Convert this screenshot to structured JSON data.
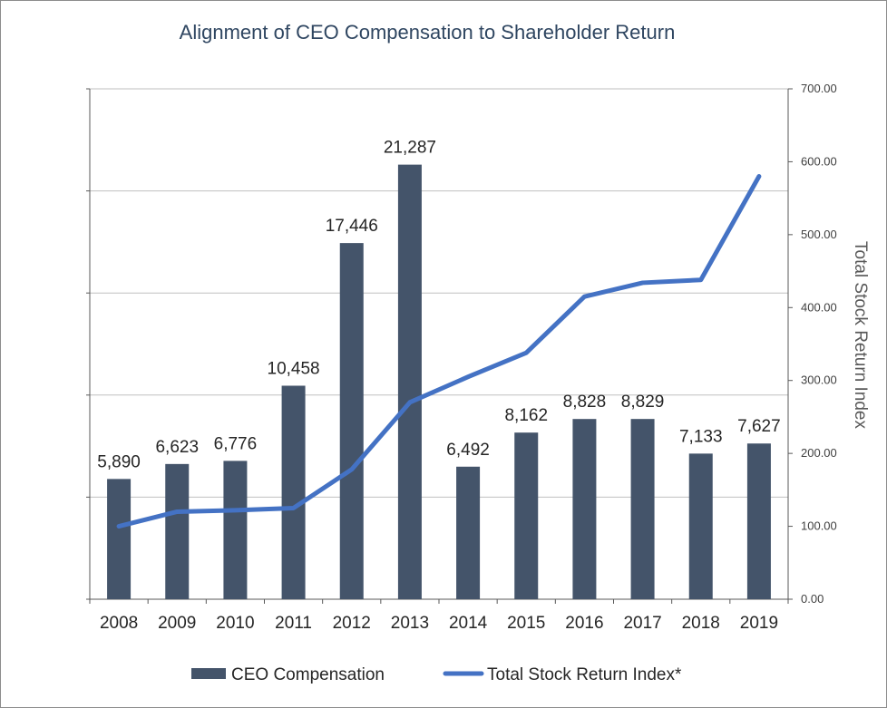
{
  "chart_data": {
    "type": "bar+line",
    "title": "Alignment of CEO Compensation to Shareholder Return",
    "categories": [
      "2008",
      "2009",
      "2010",
      "2011",
      "2012",
      "2013",
      "2014",
      "2015",
      "2016",
      "2017",
      "2018",
      "2019"
    ],
    "series": [
      {
        "name": "CEO Compensation",
        "type": "bar",
        "axis": "left",
        "values": [
          5890,
          6623,
          6776,
          10458,
          17446,
          21287,
          6492,
          8162,
          8828,
          8829,
          7133,
          7627
        ],
        "labels": [
          "5,890",
          "6,623",
          "6,776",
          "10,458",
          "17,446",
          "21,287",
          "6,492",
          "8,162",
          "8,828",
          "8,829",
          "7,133",
          "7,627"
        ]
      },
      {
        "name": "Total Stock Return Index*",
        "type": "line",
        "axis": "right",
        "values": [
          100,
          120,
          122,
          125,
          178,
          270,
          305,
          338,
          415,
          434,
          438,
          580
        ]
      }
    ],
    "y_left_range": [
      0,
      25000
    ],
    "y_right_range": [
      0,
      700
    ],
    "y_right_ticks": [
      "0.00",
      "100.00",
      "200.00",
      "300.00",
      "400.00",
      "500.00",
      "600.00",
      "700.00"
    ],
    "y_right_label": "Total Stock Return Index",
    "colors": {
      "bar": "#44546a",
      "line": "#4472c4",
      "grid": "#bfbfbf",
      "axis": "#595959",
      "title": "#2f4661"
    }
  }
}
